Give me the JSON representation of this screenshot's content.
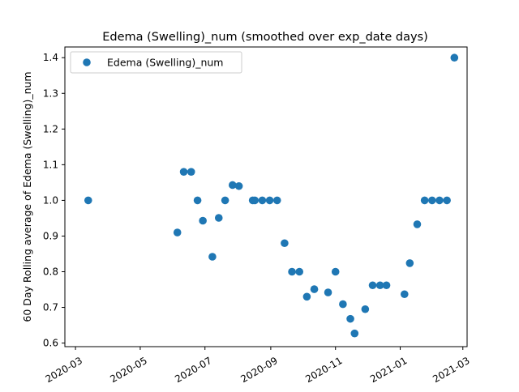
{
  "chart_data": {
    "type": "scatter",
    "title": "Edema (Swelling)_num (smoothed over exp_date days)",
    "xlabel": "",
    "ylabel": "60 Day Rolling average of Edema (Swelling)_num",
    "x_scale": "date",
    "xlim": [
      "2020-02-20",
      "2021-03-05"
    ],
    "ylim": [
      0.59,
      1.43
    ],
    "x_ticks": [
      "2020-03-01",
      "2020-05-01",
      "2020-07-01",
      "2020-09-01",
      "2020-11-01",
      "2021-01-01",
      "2021-03-01"
    ],
    "x_tick_labels": [
      "2020-03",
      "2020-05",
      "2020-07",
      "2020-09",
      "2020-11",
      "2021-01",
      "2021-03"
    ],
    "y_ticks": [
      0.6,
      0.7,
      0.8,
      0.9,
      1.0,
      1.1,
      1.2,
      1.3,
      1.4
    ],
    "y_tick_labels": [
      "0.6",
      "0.7",
      "0.8",
      "0.9",
      "1.0",
      "1.1",
      "1.2",
      "1.3",
      "1.4"
    ],
    "grid": false,
    "legend_position": "top-left",
    "series": [
      {
        "name": "Edema (Swelling)_num",
        "color": "#1f77b4",
        "marker": "circle",
        "points": [
          {
            "x": "2020-03-13",
            "y": 1.0
          },
          {
            "x": "2020-06-05",
            "y": 0.91
          },
          {
            "x": "2020-06-11",
            "y": 1.08
          },
          {
            "x": "2020-06-18",
            "y": 1.08
          },
          {
            "x": "2020-06-24",
            "y": 1.0
          },
          {
            "x": "2020-06-29",
            "y": 0.943
          },
          {
            "x": "2020-07-08",
            "y": 0.842
          },
          {
            "x": "2020-07-14",
            "y": 0.951
          },
          {
            "x": "2020-07-20",
            "y": 1.0
          },
          {
            "x": "2020-07-27",
            "y": 1.043
          },
          {
            "x": "2020-08-02",
            "y": 1.04
          },
          {
            "x": "2020-08-15",
            "y": 1.0
          },
          {
            "x": "2020-08-17",
            "y": 1.0
          },
          {
            "x": "2020-08-24",
            "y": 1.0
          },
          {
            "x": "2020-08-31",
            "y": 1.0
          },
          {
            "x": "2020-09-07",
            "y": 1.0
          },
          {
            "x": "2020-09-14",
            "y": 0.88
          },
          {
            "x": "2020-09-21",
            "y": 0.8
          },
          {
            "x": "2020-09-28",
            "y": 0.8
          },
          {
            "x": "2020-10-05",
            "y": 0.73
          },
          {
            "x": "2020-10-12",
            "y": 0.751
          },
          {
            "x": "2020-10-25",
            "y": 0.742
          },
          {
            "x": "2020-11-01",
            "y": 0.8
          },
          {
            "x": "2020-11-08",
            "y": 0.709
          },
          {
            "x": "2020-11-15",
            "y": 0.668
          },
          {
            "x": "2020-11-19",
            "y": 0.627
          },
          {
            "x": "2020-11-29",
            "y": 0.695
          },
          {
            "x": "2020-12-06",
            "y": 0.762
          },
          {
            "x": "2020-12-13",
            "y": 0.762
          },
          {
            "x": "2020-12-19",
            "y": 0.762
          },
          {
            "x": "2021-01-05",
            "y": 0.737
          },
          {
            "x": "2021-01-10",
            "y": 0.824
          },
          {
            "x": "2021-01-17",
            "y": 0.933
          },
          {
            "x": "2021-01-24",
            "y": 1.0
          },
          {
            "x": "2021-01-31",
            "y": 1.0
          },
          {
            "x": "2021-02-07",
            "y": 1.0
          },
          {
            "x": "2021-02-14",
            "y": 1.0
          },
          {
            "x": "2021-02-21",
            "y": 1.4
          }
        ]
      }
    ]
  }
}
